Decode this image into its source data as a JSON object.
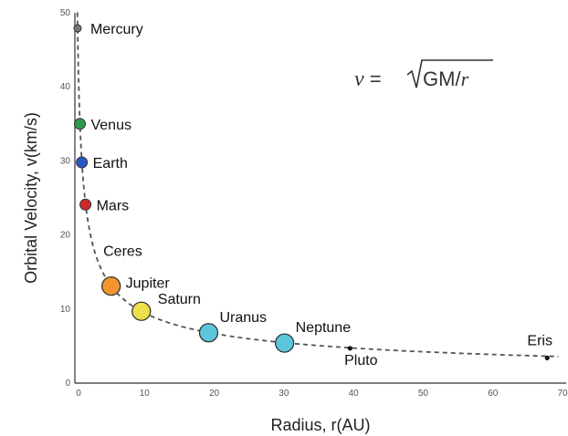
{
  "chart_data": {
    "type": "scatter",
    "title": "",
    "xlabel": "Radius, r(AU)",
    "ylabel": "Orbital Velocity, v(km/s)",
    "xlim": [
      0,
      70
    ],
    "ylim": [
      0,
      50
    ],
    "xticks": [
      0,
      10,
      20,
      30,
      40,
      50,
      60,
      70
    ],
    "yticks": [
      0,
      10,
      20,
      30,
      40,
      50
    ],
    "grid": false,
    "annotation": {
      "v": "v",
      "eq": " = ",
      "radicand": "GM/",
      "r": "r"
    },
    "curve": {
      "style": "dashed",
      "color": "#555555",
      "equation": "v = sqrt(GM/r)"
    },
    "series": [
      {
        "points": [
          {
            "label": "Mercury",
            "x": 0.39,
            "y": 47.9,
            "color": "#777777",
            "size": "small"
          },
          {
            "label": "Venus",
            "x": 0.72,
            "y": 35.0,
            "color": "#2e9a4a",
            "size": "medium"
          },
          {
            "label": "Earth",
            "x": 1.0,
            "y": 29.8,
            "color": "#2a56c6",
            "size": "medium"
          },
          {
            "label": "Mars",
            "x": 1.52,
            "y": 24.1,
            "color": "#cc2b2b",
            "size": "medium"
          },
          {
            "label": "Ceres",
            "x": 2.77,
            "y": 17.9,
            "color": "",
            "size": "none"
          },
          {
            "label": "Jupiter",
            "x": 5.2,
            "y": 13.1,
            "color": "#f2952e",
            "size": "large"
          },
          {
            "label": "Saturn",
            "x": 9.54,
            "y": 9.7,
            "color": "#eee04a",
            "size": "large"
          },
          {
            "label": "Uranus",
            "x": 19.2,
            "y": 6.8,
            "color": "#5cc6dd",
            "size": "large"
          },
          {
            "label": "Neptune",
            "x": 30.1,
            "y": 5.4,
            "color": "#5cc6dd",
            "size": "large"
          },
          {
            "label": "Pluto",
            "x": 39.5,
            "y": 4.7,
            "color": "#111111",
            "size": "dot"
          },
          {
            "label": "Eris",
            "x": 67.8,
            "y": 3.4,
            "color": "#111111",
            "size": "dot"
          }
        ]
      }
    ]
  }
}
